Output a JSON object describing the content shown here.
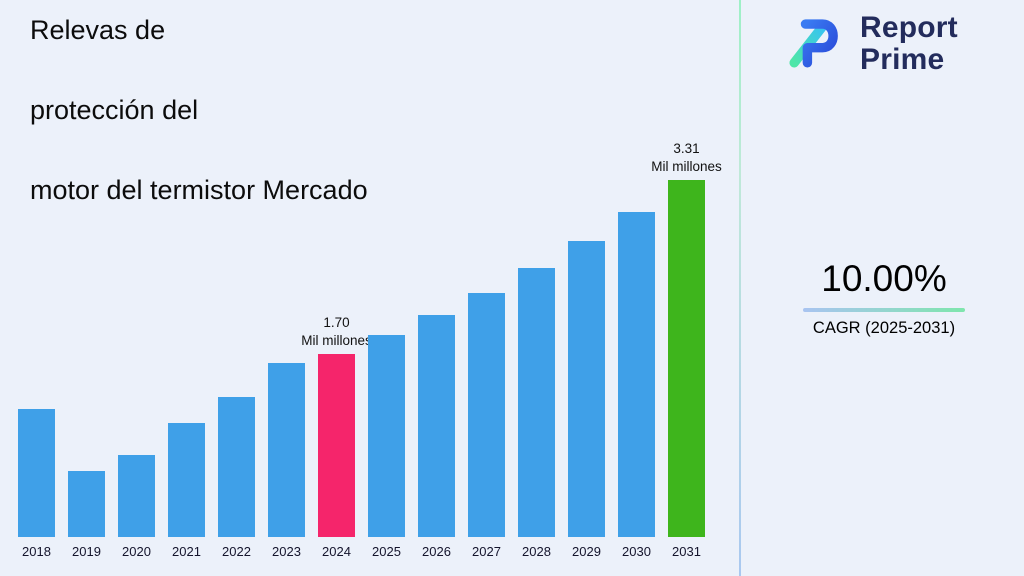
{
  "title": {
    "lines": [
      "Relevas de",
      "protección del",
      "motor del termistor Mercado"
    ]
  },
  "logo": {
    "name_top": "Report",
    "name_bottom": "Prime"
  },
  "cagr": {
    "value": "10.00%",
    "label": "CAGR (2025-2031)"
  },
  "chart_data": {
    "type": "bar",
    "title": "Relevas de protección del motor del termistor Mercado",
    "unit": "Mil millones",
    "categories": [
      "2018",
      "2019",
      "2020",
      "2021",
      "2022",
      "2023",
      "2024",
      "2025",
      "2026",
      "2027",
      "2028",
      "2029",
      "2030",
      "2031"
    ],
    "values": [
      1.19,
      0.61,
      0.76,
      1.06,
      1.3,
      1.61,
      1.7,
      1.87,
      2.06,
      2.26,
      2.49,
      2.74,
      3.01,
      3.31
    ],
    "ylim": [
      0,
      3.31
    ],
    "xlabel": "",
    "ylabel": "",
    "grid": false,
    "legend": false,
    "bar_color": "#3fa0e8",
    "annotations": [
      {
        "year": "2024",
        "value": 1.7,
        "value_label": "1.70",
        "unit_label": "Mil millones",
        "bar_color": "#f5256b"
      },
      {
        "year": "2031",
        "value": 3.31,
        "value_label": "3.31",
        "unit_label": "Mil millones",
        "bar_color": "#3eb51c"
      }
    ]
  }
}
